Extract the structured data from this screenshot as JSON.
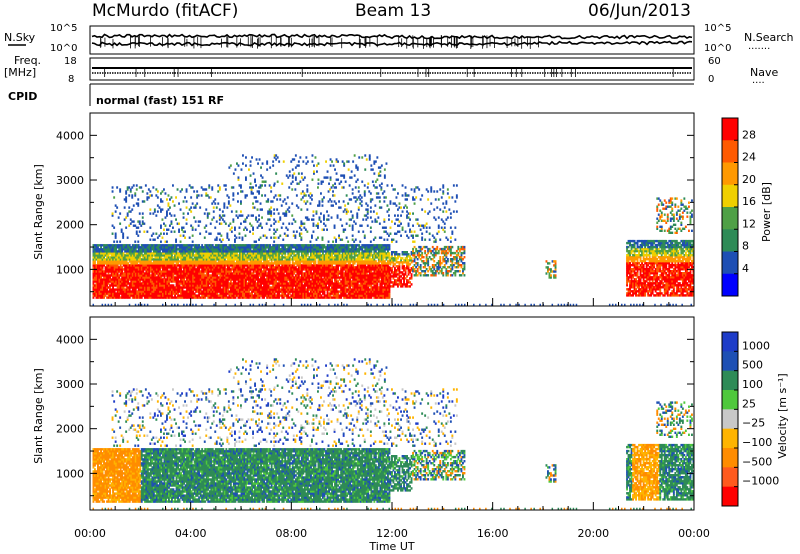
{
  "header": {
    "station": "McMurdo (fitACF)",
    "beam": "Beam 13",
    "date": "06/Jun/2013"
  },
  "colors": {
    "power_scale": [
      "#0000ff",
      "#1e4fb4",
      "#2e8b57",
      "#4fa046",
      "#f0d000",
      "#ff9900",
      "#ff5a00",
      "#ff0000"
    ],
    "velocity_scale": [
      "#ff0000",
      "#ff5a1e",
      "#ff8c00",
      "#ffb400",
      "#c8c8c8",
      "#4fc83c",
      "#2e8b57",
      "#1e50b4",
      "#1e3cc8"
    ]
  },
  "chart_data": [
    {
      "type": "line",
      "name": "N.Sky / N.Search",
      "left_label": "N.Sky",
      "right_label": "N.Search",
      "right_marker": "·······",
      "left_ticks": [
        "10^5",
        "10^0"
      ],
      "right_ticks": [
        "10^5",
        "10^0"
      ],
      "xlim": [
        0,
        24
      ]
    },
    {
      "type": "line",
      "name": "Freq / Nave",
      "left_label_1": "Freq.",
      "left_label_2": "[MHz]",
      "right_label": "Nave",
      "right_marker": "····",
      "left_ticks": [
        18,
        8
      ],
      "right_ticks": [
        60,
        0
      ],
      "ylim_freq": [
        8,
        18
      ],
      "ylim_nave": [
        0,
        60
      ],
      "xlim": [
        0,
        24
      ]
    },
    {
      "type": "table",
      "label": "CPID",
      "value": "normal (fast) 151 RF"
    },
    {
      "type": "heatmap",
      "quantity": "Power",
      "ylabel": "Slant Range [km]",
      "y_ticks": [
        1000,
        2000,
        3000,
        4000
      ],
      "ylim": [
        180,
        4500
      ],
      "xlim": [
        0,
        24
      ],
      "colorbar_label": "Power [dB]",
      "colorbar_ticks": [
        "28",
        "24",
        "20",
        "16",
        "12",
        "8",
        "4"
      ],
      "colorbar_range": [
        0,
        32
      ]
    },
    {
      "type": "heatmap",
      "quantity": "Velocity",
      "ylabel": "Slant Range [km]",
      "y_ticks": [
        1000,
        2000,
        3000,
        4000
      ],
      "ylim": [
        180,
        4500
      ],
      "xlim": [
        0,
        24
      ],
      "xlabel": "Time UT",
      "x_tick_labels": [
        "00:00",
        "04:00",
        "08:00",
        "12:00",
        "16:00",
        "20:00",
        "00:00"
      ],
      "x_tick_values": [
        0,
        4,
        8,
        12,
        16,
        20,
        24
      ],
      "colorbar_label": "Velocity [m s⁻¹]",
      "colorbar_ticks": [
        "1000",
        "500",
        "100",
        "25",
        "−25",
        "−100",
        "−500",
        "−1000"
      ]
    }
  ]
}
